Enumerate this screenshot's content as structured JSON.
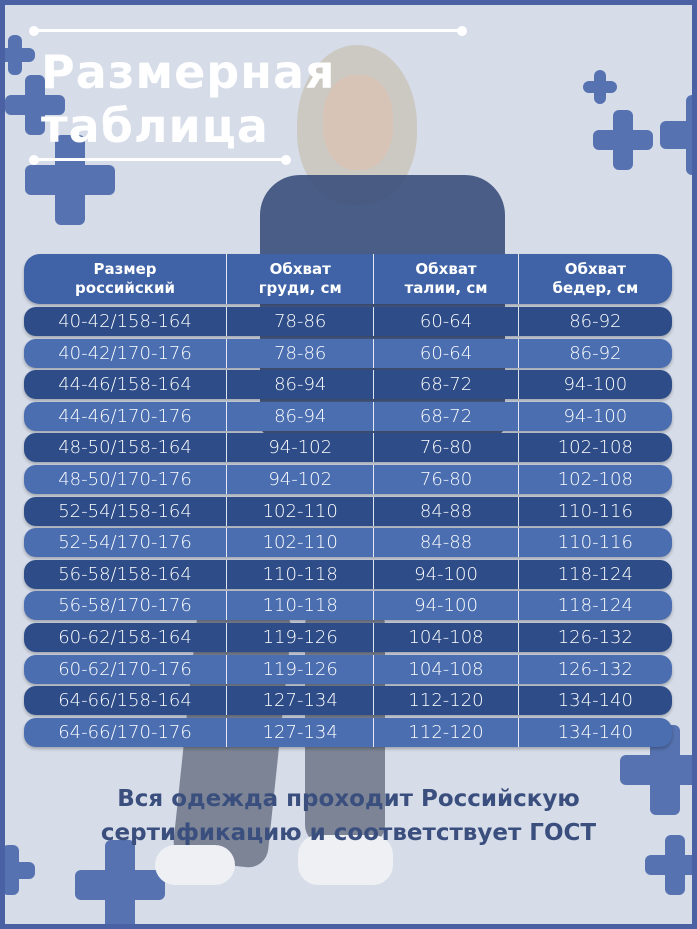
{
  "title": {
    "line1": "Размерная",
    "line2": "таблица"
  },
  "colors": {
    "frame": "#4a62a3",
    "background": "#d6dce8",
    "row_dark": "#2d4c88",
    "row_light": "#4a6eb0",
    "header": "#3f63a6",
    "footer_text": "#3a4f7e"
  },
  "table": {
    "headers": [
      [
        "Размер",
        "российский"
      ],
      [
        "Обхват",
        "груди, см"
      ],
      [
        "Обхват",
        "талии, см"
      ],
      [
        "Обхват",
        "бедер, см"
      ]
    ],
    "rows": [
      [
        "40-42/158-164",
        "78-86",
        "60-64",
        "86-92"
      ],
      [
        "40-42/170-176",
        "78-86",
        "60-64",
        "86-92"
      ],
      [
        "44-46/158-164",
        "86-94",
        "68-72",
        "94-100"
      ],
      [
        "44-46/170-176",
        "86-94",
        "68-72",
        "94-100"
      ],
      [
        "48-50/158-164",
        "94-102",
        "76-80",
        "102-108"
      ],
      [
        "48-50/170-176",
        "94-102",
        "76-80",
        "102-108"
      ],
      [
        "52-54/158-164",
        "102-110",
        "84-88",
        "110-116"
      ],
      [
        "52-54/170-176",
        "102-110",
        "84-88",
        "110-116"
      ],
      [
        "56-58/158-164",
        "110-118",
        "94-100",
        "118-124"
      ],
      [
        "56-58/170-176",
        "110-118",
        "94-100",
        "118-124"
      ],
      [
        "60-62/158-164",
        "119-126",
        "104-108",
        "126-132"
      ],
      [
        "60-62/170-176",
        "119-126",
        "104-108",
        "126-132"
      ],
      [
        "64-66/158-164",
        "127-134",
        "112-120",
        "134-140"
      ],
      [
        "64-66/170-176",
        "127-134",
        "112-120",
        "134-140"
      ]
    ]
  },
  "footer": {
    "line1": "Вся одежда проходит Российскую",
    "line2": "сертификацию и соответствует ГОСТ"
  }
}
